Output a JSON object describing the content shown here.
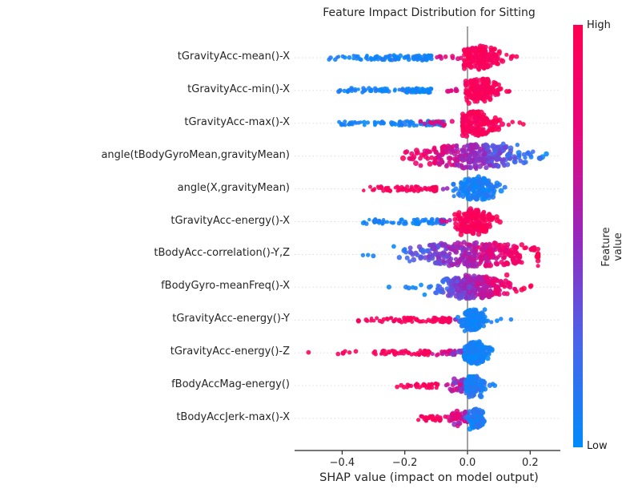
{
  "chart_data": {
    "type": "beeswarm",
    "title": "Feature Impact Distribution for Sitting",
    "xlabel": "SHAP value (impact on model output)",
    "xlim": [
      -0.57,
      0.3
    ],
    "xticks": [
      {
        "value": -0.4,
        "label": "−0.4"
      },
      {
        "value": -0.2,
        "label": "−0.2"
      },
      {
        "value": 0.0,
        "label": "0.0"
      },
      {
        "value": 0.2,
        "label": "0.2"
      }
    ],
    "grid": "dotted horizontal line per feature row",
    "zero_line": true,
    "legend_position": "colorbar right",
    "colorbar": {
      "label": "Feature value",
      "high_label": "High",
      "low_label": "Low",
      "stops": [
        {
          "t": 0.0,
          "color": "#008bfb"
        },
        {
          "t": 0.25,
          "color": "#4a64ea"
        },
        {
          "t": 0.5,
          "color": "#9727bc"
        },
        {
          "t": 0.75,
          "color": "#e8057a"
        },
        {
          "t": 1.0,
          "color": "#ff0051"
        }
      ]
    },
    "features": [
      {
        "name": "tGravityAcc-mean()-X",
        "clusters": [
          {
            "shape": "strip",
            "x0": -0.445,
            "x1": -0.115,
            "n": 95,
            "t0": 0.0,
            "t1": 0.12,
            "h": 3
          },
          {
            "shape": "sparse",
            "x0": -0.1,
            "x1": -0.02,
            "n": 9,
            "t0": 0.6,
            "t1": 0.85,
            "h": 2
          },
          {
            "shape": "swarm",
            "x0": -0.01,
            "x1": 0.135,
            "cx": 0.04,
            "n": 150,
            "t0": 0.88,
            "t1": 1.0,
            "h": 15
          },
          {
            "shape": "sparse",
            "x0": 0.135,
            "x1": 0.165,
            "n": 4,
            "t0": 0.9,
            "t1": 1.0,
            "h": 2
          }
        ]
      },
      {
        "name": "tGravityAcc-min()-X",
        "clusters": [
          {
            "shape": "strip",
            "x0": -0.415,
            "x1": -0.115,
            "n": 85,
            "t0": 0.0,
            "t1": 0.12,
            "h": 3
          },
          {
            "shape": "sparse",
            "x0": -0.1,
            "x1": -0.025,
            "n": 7,
            "t0": 0.6,
            "t1": 0.85,
            "h": 2
          },
          {
            "shape": "swarm",
            "x0": -0.005,
            "x1": 0.125,
            "cx": 0.04,
            "n": 150,
            "t0": 0.88,
            "t1": 1.0,
            "h": 15
          },
          {
            "shape": "sparse",
            "x0": 0.125,
            "x1": 0.15,
            "n": 3,
            "t0": 0.9,
            "t1": 1.0,
            "h": 2
          }
        ]
      },
      {
        "name": "tGravityAcc-max()-X",
        "clusters": [
          {
            "shape": "strip",
            "x0": -0.425,
            "x1": -0.075,
            "n": 95,
            "t0": 0.0,
            "t1": 0.12,
            "h": 3
          },
          {
            "shape": "sparse",
            "x0": -0.16,
            "x1": -0.035,
            "n": 12,
            "t0": 0.55,
            "t1": 0.85,
            "h": 3
          },
          {
            "shape": "swarm",
            "x0": -0.015,
            "x1": 0.13,
            "cx": 0.03,
            "n": 150,
            "t0": 0.88,
            "t1": 1.0,
            "h": 15
          },
          {
            "shape": "sparse",
            "x0": 0.13,
            "x1": 0.19,
            "n": 4,
            "t0": 0.9,
            "t1": 1.0,
            "h": 2
          }
        ]
      },
      {
        "name": "angle(tBodyGyroMean,gravityMean)",
        "clusters": [
          {
            "shape": "swarm",
            "x0": -0.235,
            "x1": 0.265,
            "cx": 0.025,
            "n": 300,
            "t0": 1.0,
            "t1": 0.0,
            "h": 15,
            "grad": true
          }
        ]
      },
      {
        "name": "angle(X,gravityMean)",
        "clusters": [
          {
            "shape": "strip",
            "x0": -0.335,
            "x1": -0.1,
            "n": 70,
            "t0": 0.88,
            "t1": 1.0,
            "h": 3
          },
          {
            "shape": "sparse",
            "x0": -0.085,
            "x1": -0.06,
            "n": 2,
            "t0": 0.45,
            "t1": 0.6,
            "h": 2
          },
          {
            "shape": "swarm",
            "x0": -0.045,
            "x1": 0.135,
            "cx": 0.03,
            "n": 150,
            "t0": 0.0,
            "t1": 0.15,
            "h": 14
          }
        ]
      },
      {
        "name": "tGravityAcc-energy()-X",
        "clusters": [
          {
            "shape": "strip",
            "x0": -0.335,
            "x1": -0.075,
            "n": 75,
            "t0": 0.0,
            "t1": 0.12,
            "h": 3
          },
          {
            "shape": "sparse",
            "x0": -0.09,
            "x1": -0.045,
            "n": 6,
            "t0": 0.5,
            "t1": 0.75,
            "h": 2
          },
          {
            "shape": "swarm",
            "x0": -0.04,
            "x1": 0.125,
            "cx": 0.02,
            "n": 150,
            "t0": 0.88,
            "t1": 1.0,
            "h": 15
          }
        ]
      },
      {
        "name": "tBodyAcc-correlation()-Y,Z",
        "clusters": [
          {
            "shape": "sparse",
            "x0": -0.345,
            "x1": -0.3,
            "n": 3,
            "t0": 0.0,
            "t1": 0.1,
            "h": 2
          },
          {
            "shape": "swarm",
            "x0": -0.3,
            "x1": 0.225,
            "cx": 0.01,
            "n": 320,
            "t0": 0.0,
            "t1": 1.0,
            "h": 15,
            "grad": true
          }
        ]
      },
      {
        "name": "fBodyGyro-meanFreq()-X",
        "clusters": [
          {
            "shape": "sparse",
            "x0": -0.255,
            "x1": -0.245,
            "n": 1,
            "t0": 0.0,
            "t1": 0.05,
            "h": 1
          },
          {
            "shape": "sparse",
            "x0": -0.21,
            "x1": -0.165,
            "n": 4,
            "t0": 0.0,
            "t1": 0.1,
            "h": 2
          },
          {
            "shape": "swarm",
            "x0": -0.16,
            "x1": 0.18,
            "cx": 0.015,
            "n": 290,
            "t0": 0.0,
            "t1": 1.0,
            "h": 14,
            "grad": true
          },
          {
            "shape": "sparse",
            "x0": 0.18,
            "x1": 0.21,
            "n": 3,
            "t0": 0.9,
            "t1": 1.0,
            "h": 2
          }
        ]
      },
      {
        "name": "tGravityAcc-energy()-Y",
        "clusters": [
          {
            "shape": "sparse",
            "x0": -0.36,
            "x1": -0.315,
            "n": 4,
            "t0": 0.9,
            "t1": 1.0,
            "h": 2
          },
          {
            "shape": "strip",
            "x0": -0.31,
            "x1": -0.055,
            "n": 75,
            "t0": 0.85,
            "t1": 1.0,
            "h": 3
          },
          {
            "shape": "sparse",
            "x0": -0.05,
            "x1": -0.015,
            "n": 6,
            "t0": 0.4,
            "t1": 0.7,
            "h": 2
          },
          {
            "shape": "swarm",
            "x0": -0.035,
            "x1": 0.085,
            "cx": 0.02,
            "n": 140,
            "t0": 0.0,
            "t1": 0.12,
            "h": 13
          },
          {
            "shape": "sparse",
            "x0": 0.09,
            "x1": 0.15,
            "n": 3,
            "t0": 0.0,
            "t1": 0.1,
            "h": 2
          }
        ]
      },
      {
        "name": "tGravityAcc-energy()-Z",
        "clusters": [
          {
            "shape": "sparse",
            "x0": -0.515,
            "x1": -0.505,
            "n": 1,
            "t0": 0.95,
            "t1": 1.0,
            "h": 1
          },
          {
            "shape": "sparse",
            "x0": -0.415,
            "x1": -0.285,
            "n": 9,
            "t0": 0.88,
            "t1": 1.0,
            "h": 2
          },
          {
            "shape": "strip",
            "x0": -0.28,
            "x1": -0.12,
            "n": 50,
            "t0": 0.85,
            "t1": 1.0,
            "h": 3
          },
          {
            "shape": "strip",
            "x0": -0.12,
            "x1": -0.04,
            "n": 25,
            "t0": 0.55,
            "t1": 0.85,
            "h": 3
          },
          {
            "shape": "sparse",
            "x0": -0.05,
            "x1": -0.005,
            "n": 12,
            "t0": 0.3,
            "t1": 0.55,
            "h": 3
          },
          {
            "shape": "swarm",
            "x0": -0.01,
            "x1": 0.085,
            "cx": 0.025,
            "n": 150,
            "t0": 0.0,
            "t1": 0.12,
            "h": 14
          }
        ]
      },
      {
        "name": "fBodyAccMag-energy()",
        "clusters": [
          {
            "shape": "sparse",
            "x0": -0.235,
            "x1": -0.195,
            "n": 3,
            "t0": 0.9,
            "t1": 1.0,
            "h": 2
          },
          {
            "shape": "strip",
            "x0": -0.195,
            "x1": -0.095,
            "n": 30,
            "t0": 0.85,
            "t1": 1.0,
            "h": 3
          },
          {
            "shape": "swarm",
            "x0": -0.1,
            "x1": 0.005,
            "cx": -0.02,
            "n": 50,
            "t0": 0.35,
            "t1": 0.8,
            "h": 8
          },
          {
            "shape": "swarm",
            "x0": -0.005,
            "x1": 0.075,
            "cx": 0.02,
            "n": 120,
            "t0": 0.0,
            "t1": 0.18,
            "h": 13
          },
          {
            "shape": "sparse",
            "x0": 0.075,
            "x1": 0.09,
            "n": 2,
            "t0": 0.0,
            "t1": 0.1,
            "h": 2
          }
        ]
      },
      {
        "name": "tBodyAccJerk-max()-X",
        "clusters": [
          {
            "shape": "strip",
            "x0": -0.175,
            "x1": -0.085,
            "n": 28,
            "t0": 0.85,
            "t1": 1.0,
            "h": 3
          },
          {
            "shape": "swarm",
            "x0": -0.085,
            "x1": 0.0,
            "cx": -0.025,
            "n": 55,
            "t0": 0.45,
            "t1": 0.85,
            "h": 9
          },
          {
            "shape": "swarm",
            "x0": -0.005,
            "x1": 0.07,
            "cx": 0.028,
            "n": 110,
            "t0": 0.0,
            "t1": 0.2,
            "h": 12
          }
        ]
      }
    ]
  },
  "colors": {
    "dot_red": "#ff0051",
    "dot_blue": "#008bfb",
    "zero_line": "#999999",
    "grid_line": "#dcdcdc",
    "axis_line": "#262626",
    "text": "#262626"
  }
}
